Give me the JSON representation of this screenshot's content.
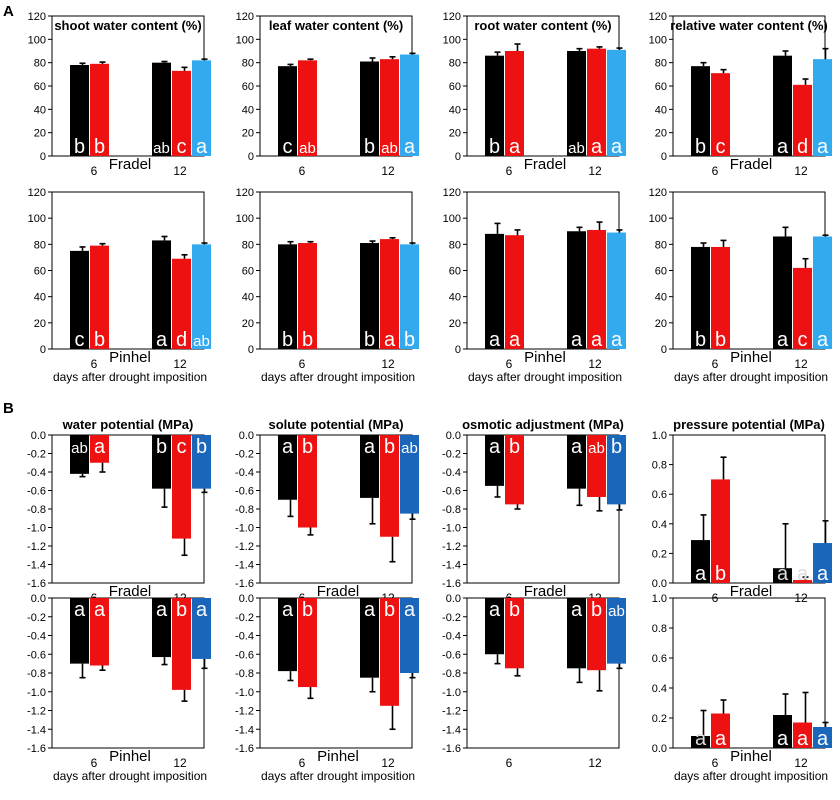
{
  "panel_labels": [
    "A",
    "B"
  ],
  "colors": {
    "control": "#000000",
    "drought": "#ee1111",
    "rewatered_a": "#33aaee",
    "rewatered_b": "#1a66bb"
  },
  "chart_data": [
    {
      "type": "bar",
      "title": "shoot water content (%)",
      "cultivar": "Fradel",
      "xlabel": "",
      "categories": [
        "6",
        "12"
      ],
      "ylim": [
        0,
        120
      ],
      "yticks": [
        0,
        20,
        40,
        60,
        80,
        100,
        120
      ],
      "series": [
        {
          "name": "control",
          "color": "#000000",
          "values": [
            78,
            80
          ],
          "errors": [
            1.5,
            1
          ],
          "letters": [
            "b",
            "ab"
          ]
        },
        {
          "name": "drought",
          "color": "#ee1111",
          "values": [
            79,
            73
          ],
          "errors": [
            1.5,
            3
          ],
          "letters": [
            "b",
            "c"
          ]
        },
        {
          "name": "rewatered",
          "color": "#33aaee",
          "values": [
            null,
            82
          ],
          "errors": [
            null,
            1
          ],
          "letters": [
            null,
            "a"
          ]
        }
      ]
    },
    {
      "type": "bar",
      "title": "leaf water content (%)",
      "cultivar": "",
      "xlabel": "",
      "categories": [
        "6",
        "12"
      ],
      "ylim": [
        0,
        120
      ],
      "yticks": [
        0,
        20,
        40,
        60,
        80,
        100,
        120
      ],
      "series": [
        {
          "name": "control",
          "color": "#000000",
          "values": [
            77,
            81
          ],
          "errors": [
            1.5,
            3
          ],
          "letters": [
            "c",
            "b"
          ]
        },
        {
          "name": "drought",
          "color": "#ee1111",
          "values": [
            82,
            83
          ],
          "errors": [
            1,
            2
          ],
          "letters": [
            "ab",
            "ab"
          ]
        },
        {
          "name": "rewatered",
          "color": "#33aaee",
          "values": [
            null,
            87
          ],
          "errors": [
            null,
            1
          ],
          "letters": [
            null,
            "a"
          ]
        }
      ]
    },
    {
      "type": "bar",
      "title": "root water content (%)",
      "cultivar": "Fradel",
      "xlabel": "",
      "categories": [
        "6",
        "12"
      ],
      "ylim": [
        0,
        120
      ],
      "yticks": [
        0,
        20,
        40,
        60,
        80,
        100,
        120
      ],
      "series": [
        {
          "name": "control",
          "color": "#000000",
          "values": [
            86,
            90
          ],
          "errors": [
            3,
            2
          ],
          "letters": [
            "b",
            "ab"
          ]
        },
        {
          "name": "drought",
          "color": "#ee1111",
          "values": [
            90,
            92
          ],
          "errors": [
            6,
            1.5
          ],
          "letters": [
            "a",
            "a"
          ]
        },
        {
          "name": "rewatered",
          "color": "#33aaee",
          "values": [
            null,
            91
          ],
          "errors": [
            null,
            1.5
          ],
          "letters": [
            null,
            "a"
          ]
        }
      ]
    },
    {
      "type": "bar",
      "title": "relative water content (%)",
      "cultivar": "Fradel",
      "xlabel": "",
      "categories": [
        "6",
        "12"
      ],
      "ylim": [
        0,
        120
      ],
      "yticks": [
        0,
        20,
        40,
        60,
        80,
        100,
        120
      ],
      "series": [
        {
          "name": "control",
          "color": "#000000",
          "values": [
            77,
            86
          ],
          "errors": [
            3,
            4
          ],
          "letters": [
            "b",
            "a"
          ]
        },
        {
          "name": "drought",
          "color": "#ee1111",
          "values": [
            71,
            61
          ],
          "errors": [
            3,
            5
          ],
          "letters": [
            "c",
            "d"
          ]
        },
        {
          "name": "rewatered",
          "color": "#33aaee",
          "values": [
            null,
            83
          ],
          "errors": [
            null,
            9
          ],
          "letters": [
            null,
            "a"
          ]
        }
      ]
    },
    {
      "type": "bar",
      "title": "",
      "cultivar": "Pinhel",
      "xlabel": "days after drought imposition",
      "categories": [
        "6",
        "12"
      ],
      "ylim": [
        0,
        120
      ],
      "yticks": [
        0,
        20,
        40,
        60,
        80,
        100,
        120
      ],
      "series": [
        {
          "name": "control",
          "color": "#000000",
          "values": [
            75,
            83
          ],
          "errors": [
            3,
            3
          ],
          "letters": [
            "c",
            "a"
          ]
        },
        {
          "name": "drought",
          "color": "#ee1111",
          "values": [
            79,
            69
          ],
          "errors": [
            1.5,
            3
          ],
          "letters": [
            "b",
            "d"
          ]
        },
        {
          "name": "rewatered",
          "color": "#33aaee",
          "values": [
            null,
            80
          ],
          "errors": [
            null,
            1
          ],
          "letters": [
            null,
            "ab"
          ]
        }
      ]
    },
    {
      "type": "bar",
      "title": "",
      "cultivar": "",
      "xlabel": "days after drought imposition",
      "categories": [
        "6",
        "12"
      ],
      "ylim": [
        0,
        120
      ],
      "yticks": [
        0,
        20,
        40,
        60,
        80,
        100,
        120
      ],
      "series": [
        {
          "name": "control",
          "color": "#000000",
          "values": [
            80,
            81
          ],
          "errors": [
            2,
            1.5
          ],
          "letters": [
            "b",
            "b"
          ]
        },
        {
          "name": "drought",
          "color": "#ee1111",
          "values": [
            81,
            84
          ],
          "errors": [
            1,
            1
          ],
          "letters": [
            "b",
            "a"
          ]
        },
        {
          "name": "rewatered",
          "color": "#33aaee",
          "values": [
            null,
            80
          ],
          "errors": [
            null,
            1
          ],
          "letters": [
            null,
            "b"
          ]
        }
      ]
    },
    {
      "type": "bar",
      "title": "",
      "cultivar": "Pinhel",
      "xlabel": "days after drought imposition",
      "categories": [
        "6",
        "12"
      ],
      "ylim": [
        0,
        120
      ],
      "yticks": [
        0,
        20,
        40,
        60,
        80,
        100,
        120
      ],
      "series": [
        {
          "name": "control",
          "color": "#000000",
          "values": [
            88,
            90
          ],
          "errors": [
            8,
            3
          ],
          "letters": [
            "a",
            "a"
          ]
        },
        {
          "name": "drought",
          "color": "#ee1111",
          "values": [
            87,
            91
          ],
          "errors": [
            4,
            6
          ],
          "letters": [
            "a",
            "a"
          ]
        },
        {
          "name": "rewatered",
          "color": "#33aaee",
          "values": [
            null,
            89
          ],
          "errors": [
            null,
            2
          ],
          "letters": [
            null,
            "a"
          ]
        }
      ]
    },
    {
      "type": "bar",
      "title": "",
      "cultivar": "Pinhel",
      "xlabel": "days after drought imposition",
      "categories": [
        "6",
        "12"
      ],
      "ylim": [
        0,
        120
      ],
      "yticks": [
        0,
        20,
        40,
        60,
        80,
        100,
        120
      ],
      "series": [
        {
          "name": "control",
          "color": "#000000",
          "values": [
            78,
            86
          ],
          "errors": [
            3,
            7
          ],
          "letters": [
            "b",
            "a"
          ]
        },
        {
          "name": "drought",
          "color": "#ee1111",
          "values": [
            78,
            62
          ],
          "errors": [
            5,
            7
          ],
          "letters": [
            "b",
            "c"
          ]
        },
        {
          "name": "rewatered",
          "color": "#33aaee",
          "values": [
            null,
            86
          ],
          "errors": [
            null,
            1
          ],
          "letters": [
            null,
            "a"
          ]
        }
      ]
    },
    {
      "type": "bar",
      "title": "water potential (MPa)",
      "cultivar": "Fradel",
      "xlabel": "",
      "categories": [
        "6",
        "12"
      ],
      "ylim": [
        -1.6,
        0
      ],
      "yticks": [
        0,
        -0.2,
        -0.4,
        -0.6,
        -0.8,
        -1.0,
        -1.2,
        -1.4,
        -1.6
      ],
      "series": [
        {
          "name": "control",
          "color": "#000000",
          "values": [
            -0.42,
            -0.58
          ],
          "errors": [
            0.03,
            0.2
          ],
          "letters": [
            "ab",
            "b"
          ]
        },
        {
          "name": "drought",
          "color": "#ee1111",
          "values": [
            -0.3,
            -1.12
          ],
          "errors": [
            0.1,
            0.18
          ],
          "letters": [
            "a",
            "c"
          ]
        },
        {
          "name": "rewatered",
          "color": "#1a66bb",
          "values": [
            null,
            -0.58
          ],
          "errors": [
            null,
            0.04
          ],
          "letters": [
            null,
            "b"
          ]
        }
      ]
    },
    {
      "type": "bar",
      "title": "solute potential (MPa)",
      "cultivar": "Fradel",
      "xlabel": "",
      "categories": [
        "6",
        "12"
      ],
      "ylim": [
        -1.6,
        0
      ],
      "yticks": [
        0,
        -0.2,
        -0.4,
        -0.6,
        -0.8,
        -1.0,
        -1.2,
        -1.4,
        -1.6
      ],
      "series": [
        {
          "name": "control",
          "color": "#000000",
          "values": [
            -0.7,
            -0.68
          ],
          "errors": [
            0.18,
            0.28
          ],
          "letters": [
            "a",
            "a"
          ]
        },
        {
          "name": "drought",
          "color": "#ee1111",
          "values": [
            -1.0,
            -1.1
          ],
          "errors": [
            0.08,
            0.27
          ],
          "letters": [
            "b",
            "b"
          ]
        },
        {
          "name": "rewatered",
          "color": "#1a66bb",
          "values": [
            null,
            -0.85
          ],
          "errors": [
            null,
            0.06
          ],
          "letters": [
            null,
            "ab"
          ]
        }
      ]
    },
    {
      "type": "bar",
      "title": "osmotic adjustment (MPa)",
      "cultivar": "Fradel",
      "xlabel": "",
      "categories": [
        "6",
        "12"
      ],
      "ylim": [
        -1.6,
        0
      ],
      "yticks": [
        0,
        -0.2,
        -0.4,
        -0.6,
        -0.8,
        -1.0,
        -1.2,
        -1.4,
        -1.6
      ],
      "series": [
        {
          "name": "control",
          "color": "#000000",
          "values": [
            -0.55,
            -0.58
          ],
          "errors": [
            0.12,
            0.18
          ],
          "letters": [
            "a",
            "a"
          ]
        },
        {
          "name": "drought",
          "color": "#ee1111",
          "values": [
            -0.75,
            -0.67
          ],
          "errors": [
            0.05,
            0.15
          ],
          "letters": [
            "b",
            "ab"
          ]
        },
        {
          "name": "rewatered",
          "color": "#1a66bb",
          "values": [
            null,
            -0.75
          ],
          "errors": [
            null,
            0.06
          ],
          "letters": [
            null,
            "b"
          ]
        }
      ]
    },
    {
      "type": "bar",
      "title": "pressure potential (MPa)",
      "cultivar": "Fradel",
      "xlabel": "",
      "categories": [
        "6",
        "12"
      ],
      "ylim": [
        0,
        1.0
      ],
      "yticks": [
        0,
        0.2,
        0.4,
        0.6,
        0.8,
        1.0
      ],
      "series": [
        {
          "name": "control",
          "color": "#000000",
          "values": [
            0.29,
            0.1
          ],
          "errors": [
            0.17,
            0.3
          ],
          "letters": [
            "a",
            "a"
          ]
        },
        {
          "name": "drought",
          "color": "#ee1111",
          "values": [
            0.7,
            0.02
          ],
          "errors": [
            0.15,
            0.02
          ],
          "letters": [
            "b",
            "a"
          ]
        },
        {
          "name": "rewatered",
          "color": "#1a66bb",
          "values": [
            null,
            0.27
          ],
          "errors": [
            null,
            0.15
          ],
          "letters": [
            null,
            "a"
          ]
        }
      ]
    },
    {
      "type": "bar",
      "title": "",
      "cultivar": "Pinhel",
      "xlabel": "days after drought imposition",
      "categories": [
        "6",
        "12"
      ],
      "ylim": [
        -1.6,
        0
      ],
      "yticks": [
        0,
        -0.2,
        -0.4,
        -0.6,
        -0.8,
        -1.0,
        -1.2,
        -1.4,
        -1.6
      ],
      "series": [
        {
          "name": "control",
          "color": "#000000",
          "values": [
            -0.7,
            -0.63
          ],
          "errors": [
            0.15,
            0.08
          ],
          "letters": [
            "a",
            "a"
          ]
        },
        {
          "name": "drought",
          "color": "#ee1111",
          "values": [
            -0.72,
            -0.98
          ],
          "errors": [
            0.05,
            0.12
          ],
          "letters": [
            "a",
            "b"
          ]
        },
        {
          "name": "rewatered",
          "color": "#1a66bb",
          "values": [
            null,
            -0.65
          ],
          "errors": [
            null,
            0.1
          ],
          "letters": [
            null,
            "a"
          ]
        }
      ]
    },
    {
      "type": "bar",
      "title": "",
      "cultivar": "Pinhel",
      "xlabel": "days after drought imposition",
      "categories": [
        "6",
        "12"
      ],
      "ylim": [
        -1.6,
        0
      ],
      "yticks": [
        0,
        -0.2,
        -0.4,
        -0.6,
        -0.8,
        -1.0,
        -1.2,
        -1.4,
        -1.6
      ],
      "series": [
        {
          "name": "control",
          "color": "#000000",
          "values": [
            -0.78,
            -0.85
          ],
          "errors": [
            0.1,
            0.15
          ],
          "letters": [
            "a",
            "a"
          ]
        },
        {
          "name": "drought",
          "color": "#ee1111",
          "values": [
            -0.95,
            -1.15
          ],
          "errors": [
            0.12,
            0.25
          ],
          "letters": [
            "b",
            "b"
          ]
        },
        {
          "name": "rewatered",
          "color": "#1a66bb",
          "values": [
            null,
            -0.8
          ],
          "errors": [
            null,
            0.05
          ],
          "letters": [
            null,
            "a"
          ]
        }
      ]
    },
    {
      "type": "bar",
      "title": "",
      "cultivar": "",
      "xlabel": "",
      "categories": [
        "6",
        "12"
      ],
      "ylim": [
        -1.6,
        0
      ],
      "yticks": [
        0,
        -0.2,
        -0.4,
        -0.6,
        -0.8,
        -1.0,
        -1.2,
        -1.4,
        -1.6
      ],
      "series": [
        {
          "name": "control",
          "color": "#000000",
          "values": [
            -0.6,
            -0.75
          ],
          "errors": [
            0.1,
            0.15
          ],
          "letters": [
            "a",
            "a"
          ]
        },
        {
          "name": "drought",
          "color": "#ee1111",
          "values": [
            -0.75,
            -0.77
          ],
          "errors": [
            0.08,
            0.22
          ],
          "letters": [
            "b",
            "b"
          ]
        },
        {
          "name": "rewatered",
          "color": "#1a66bb",
          "values": [
            null,
            -0.7
          ],
          "errors": [
            null,
            0.05
          ],
          "letters": [
            null,
            "ab"
          ]
        }
      ]
    },
    {
      "type": "bar",
      "title": "",
      "cultivar": "Pinhel",
      "xlabel": "days after drought imposition",
      "categories": [
        "6",
        "12"
      ],
      "ylim": [
        0,
        1.0
      ],
      "yticks": [
        0,
        0.2,
        0.4,
        0.6,
        0.8,
        1.0
      ],
      "series": [
        {
          "name": "control",
          "color": "#000000",
          "values": [
            0.08,
            0.22
          ],
          "errors": [
            0.17,
            0.14
          ],
          "letters": [
            "a",
            "a"
          ]
        },
        {
          "name": "drought",
          "color": "#ee1111",
          "values": [
            0.23,
            0.17
          ],
          "errors": [
            0.09,
            0.2
          ],
          "letters": [
            "a",
            "a"
          ]
        },
        {
          "name": "rewatered",
          "color": "#1a66bb",
          "values": [
            null,
            0.14
          ],
          "errors": [
            null,
            0.03
          ],
          "letters": [
            null,
            "a"
          ]
        }
      ]
    }
  ]
}
